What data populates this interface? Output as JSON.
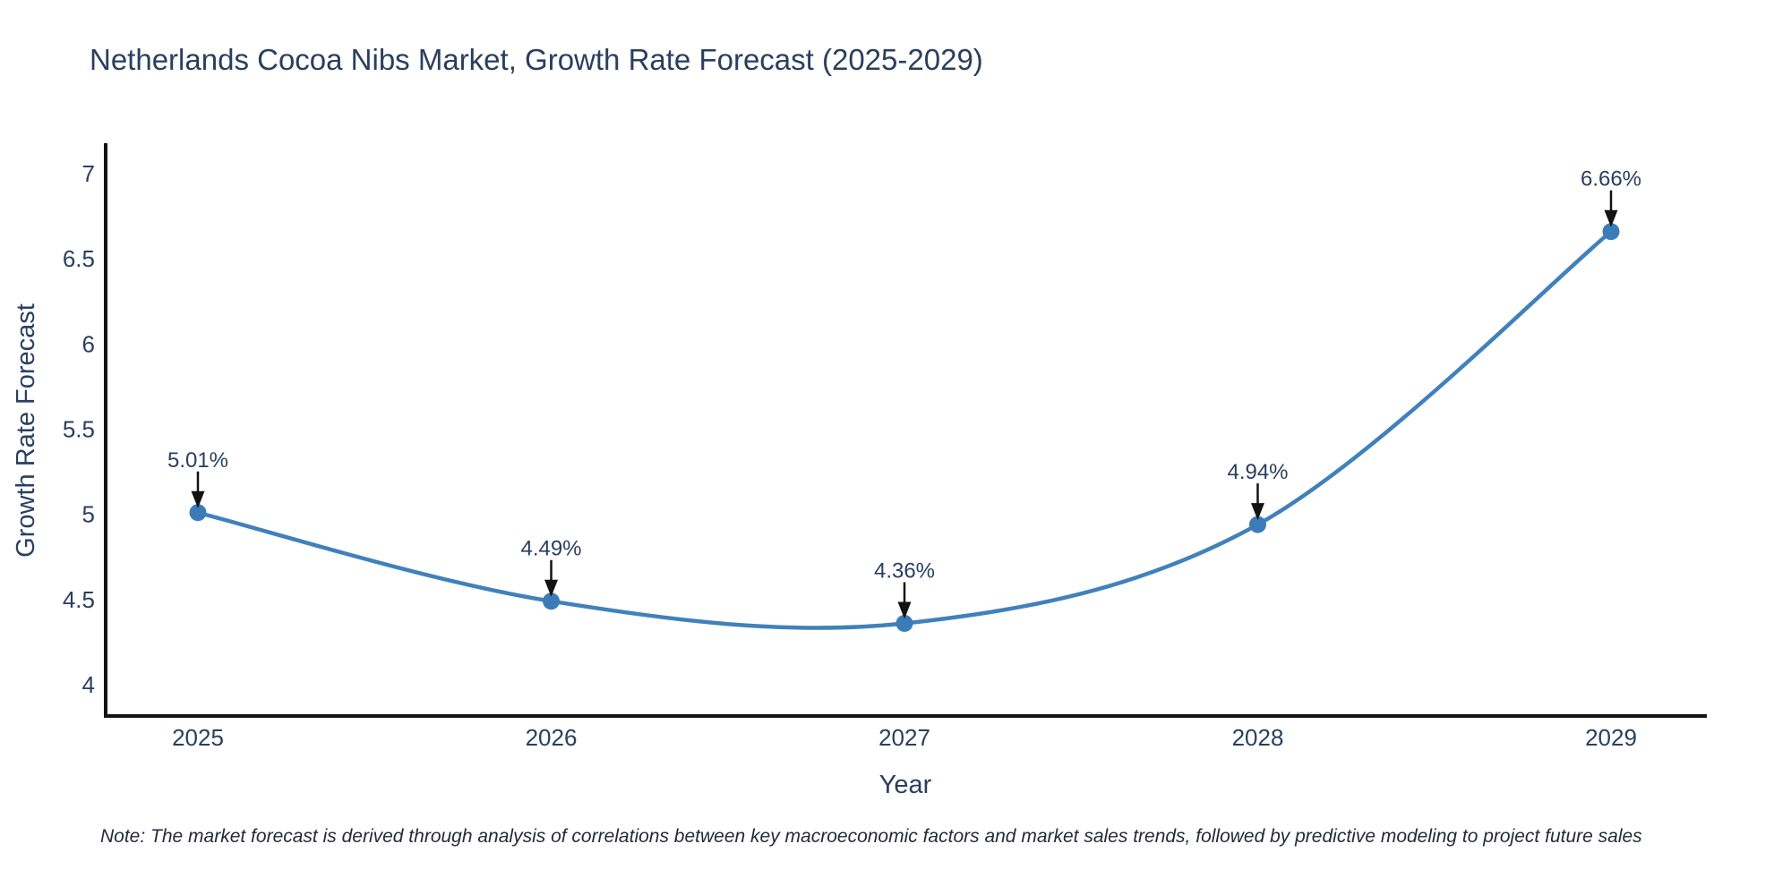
{
  "title": "Netherlands Cocoa Nibs Market, Growth Rate Forecast (2025-2029)",
  "note": "Note: The market forecast is derived through analysis of correlations between key macroeconomic factors and market sales trends, followed by predictive modeling to project future sales",
  "colors": {
    "text": "#2a3f5f",
    "line": "#4181bb",
    "marker_fill": "#3b7cb8",
    "axis": "#131313",
    "arrow": "#131313",
    "background": "#ffffff"
  },
  "chart_data": {
    "type": "line",
    "line_shape": "spline",
    "title": "Netherlands Cocoa Nibs Market, Growth Rate Forecast (2025-2029)",
    "xlabel": "Year",
    "ylabel": "Growth Rate Forecast",
    "x": [
      2025,
      2026,
      2027,
      2028,
      2029
    ],
    "y": [
      5.01,
      4.49,
      4.36,
      4.94,
      6.66
    ],
    "point_labels": [
      "5.01%",
      "4.49%",
      "4.36%",
      "4.94%",
      "6.66%"
    ],
    "xticks": [
      "2025",
      "2026",
      "2027",
      "2028",
      "2029"
    ],
    "yticks": [
      7,
      6.5,
      6,
      5.5,
      5,
      4.5,
      4
    ],
    "ylim": [
      3.82,
      7.18
    ],
    "xlim": [
      2024.74,
      2029.27
    ],
    "grid": false,
    "legend": false,
    "markers": true,
    "annotation_arrows": true
  }
}
